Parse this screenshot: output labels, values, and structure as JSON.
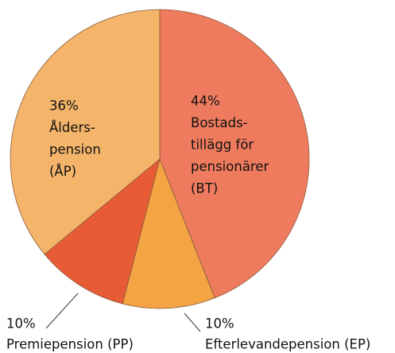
{
  "chart_data": {
    "type": "pie",
    "categories": [
      [
        "Bostads-",
        "tillägg för",
        "pensionärer",
        "(BT)"
      ],
      [
        "Efterlevandepension (EP)"
      ],
      [
        "Premiepension (PP)"
      ],
      [
        "Ålders-",
        "pension",
        "(ÅP)"
      ]
    ],
    "values": [
      44,
      10,
      10,
      36
    ],
    "value_labels": [
      "44%",
      "10%",
      "10%",
      "36%"
    ],
    "colors": [
      "#ee7b5e",
      "#f5a444",
      "#e85c35",
      "#f4b46a"
    ]
  }
}
